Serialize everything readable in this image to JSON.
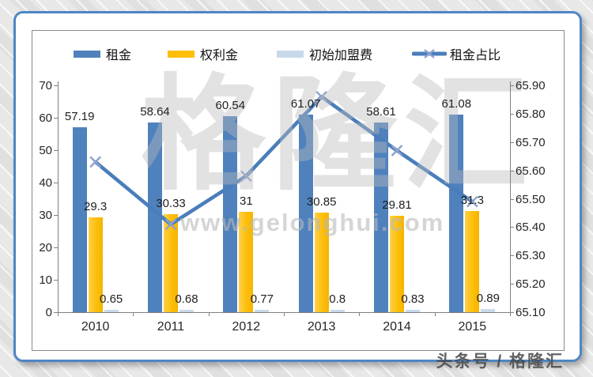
{
  "watermark": {
    "brand": "格隆汇",
    "url": "www.gelonghui.com"
  },
  "footer": {
    "credit": "头条号 / 格隆汇"
  },
  "colors": {
    "frame_border": "#4e86c4",
    "rent_bar": "#4f81bd",
    "royalty_bar": "#fdbf0a",
    "initial_fee_bar": "#c9d9ec",
    "ratio_line": "#4a7ebb",
    "ratio_marker": "#8ea2cf"
  },
  "chart_data": {
    "type": "bar",
    "subtype": "grouped bars with secondary-axis line",
    "categories": [
      "2010",
      "2011",
      "2012",
      "2013",
      "2014",
      "2015"
    ],
    "series": [
      {
        "name": "租金",
        "kind": "bar",
        "axis": "left",
        "color": "#4f81bd",
        "values": [
          57.19,
          58.64,
          60.54,
          61.07,
          58.61,
          61.08
        ]
      },
      {
        "name": "权利金",
        "kind": "bar",
        "axis": "left",
        "color": "#fdbf0a",
        "values": [
          29.3,
          30.33,
          31,
          30.85,
          29.81,
          31.3
        ]
      },
      {
        "name": "初始加盟费",
        "kind": "bar",
        "axis": "left",
        "color": "#c9d9ec",
        "values": [
          0.65,
          0.68,
          0.77,
          0.8,
          0.83,
          0.89
        ]
      },
      {
        "name": "租金占比",
        "kind": "line",
        "axis": "right",
        "color": "#4a7ebb",
        "marker": "x",
        "marker_color": "#8ea2cf",
        "values": [
          65.63,
          65.41,
          65.58,
          65.86,
          65.67,
          65.49
        ]
      }
    ],
    "title": "",
    "xlabel": "",
    "ylabel": "",
    "left_axis": {
      "min": 0,
      "max": 70,
      "step": 10,
      "ticks": [
        "70",
        "60",
        "50",
        "40",
        "30",
        "20",
        "10",
        "0"
      ]
    },
    "right_axis": {
      "min": 65.1,
      "max": 65.9,
      "step": 0.1,
      "ticks": [
        "65.90",
        "65.80",
        "65.70",
        "65.60",
        "65.50",
        "65.40",
        "65.30",
        "65.20",
        "65.10"
      ]
    },
    "legend_position": "top",
    "grid": false,
    "bar_data_labels_visible": true,
    "line_data_labels_visible": false
  }
}
